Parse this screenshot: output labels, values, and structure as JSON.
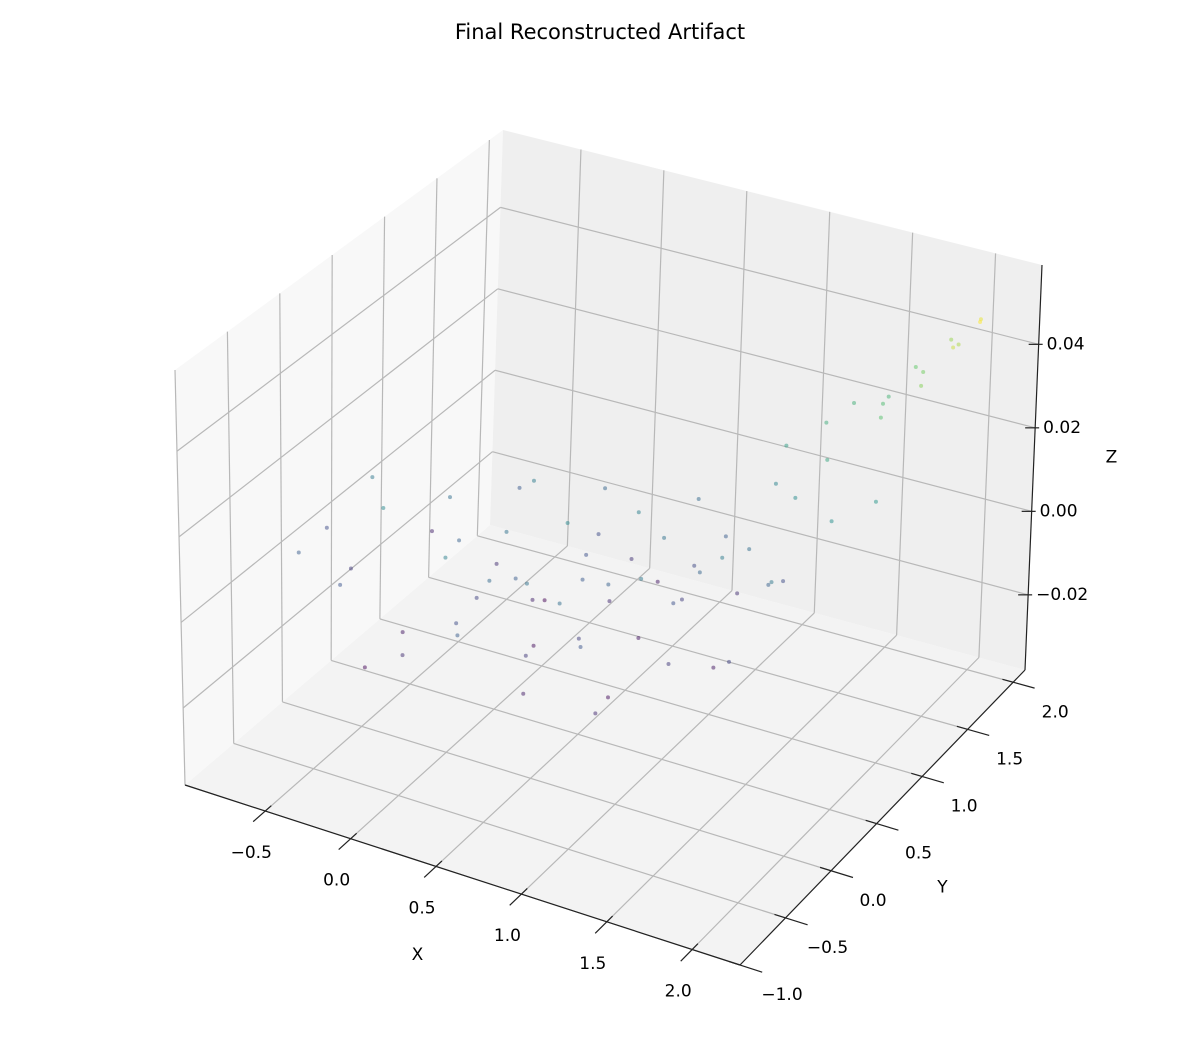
{
  "chart_data": {
    "type": "scatter3d",
    "title": "Final Reconstructed Artifact",
    "xlabel": "X",
    "ylabel": "Y",
    "zlabel": "Z",
    "colormap": "viridis",
    "xlim": [
      -0.97,
      2.28
    ],
    "ylim": [
      -1.0,
      2.13
    ],
    "zlim": [
      -0.038,
      0.059
    ],
    "xticks": [
      {
        "value": -0.5,
        "label": "−0.5"
      },
      {
        "value": 0,
        "label": "0.0"
      },
      {
        "value": 0.5,
        "label": "0.5"
      },
      {
        "value": 1,
        "label": "1.0"
      },
      {
        "value": 1.5,
        "label": "1.5"
      },
      {
        "value": 2,
        "label": "2.0"
      }
    ],
    "yticks": [
      {
        "value": -1,
        "label": "−1.0"
      },
      {
        "value": -0.5,
        "label": "−0.5"
      },
      {
        "value": 0,
        "label": "0.0"
      },
      {
        "value": 0.5,
        "label": "0.5"
      },
      {
        "value": 1,
        "label": "1.0"
      },
      {
        "value": 1.5,
        "label": "1.5"
      },
      {
        "value": 2,
        "label": "2.0"
      }
    ],
    "zticks": [
      {
        "value": -0.02,
        "label": "−0.02"
      },
      {
        "value": 0,
        "label": "0.00"
      },
      {
        "value": 0.02,
        "label": "0.02"
      },
      {
        "value": 0.04,
        "label": "0.04"
      }
    ],
    "x": [
      -0.62,
      -0.45,
      -0.3,
      -0.2,
      -0.1,
      0.0,
      0.05,
      0.12,
      0.2,
      0.25,
      0.3,
      0.35,
      0.4,
      0.45,
      0.5,
      0.55,
      0.6,
      0.65,
      0.7,
      0.75,
      0.8,
      0.85,
      0.9,
      0.95,
      1.0,
      1.05,
      1.1,
      1.15,
      1.2,
      1.25,
      1.3,
      1.35,
      1.4,
      1.5,
      1.55,
      -0.7,
      -0.55,
      -0.4,
      -0.25,
      -0.15,
      -0.05,
      0.08,
      0.18,
      0.28,
      0.38,
      0.48,
      0.58,
      0.68,
      0.78,
      0.88,
      0.98,
      1.08,
      1.18,
      1.28,
      1.45,
      0.15,
      0.62,
      0.32,
      0.72,
      1.02,
      1.2,
      1.35,
      1.5,
      1.6,
      1.7,
      1.75,
      1.85,
      1.9,
      1.95,
      2.0,
      1.65,
      1.8,
      2.05,
      1.55,
      1.4,
      -0.75,
      -0.85,
      1.6,
      1.7,
      1.85
    ],
    "y": [
      0.1,
      -0.3,
      0.55,
      -0.1,
      0.3,
      -0.45,
      0.8,
      0.1,
      -0.25,
      0.45,
      1.1,
      -0.5,
      0.2,
      0.65,
      -0.05,
      0.95,
      0.35,
      -0.35,
      0.75,
      0.05,
      1.2,
      0.5,
      -0.2,
      0.9,
      0.25,
      1.05,
      -0.4,
      0.6,
      1.3,
      0.1,
      0.85,
      0.4,
      1.15,
      0.7,
      0.2,
      0.45,
      0.8,
      0.05,
      -0.4,
      1.0,
      0.6,
      -0.15,
      0.7,
      -0.05,
      0.9,
      0.4,
      -0.2,
      1.0,
      0.3,
      0.7,
      -0.05,
      0.45,
      0.95,
      0.6,
      0.95,
      0.35,
      0.6,
      0.15,
      -0.1,
      0.65,
      1.4,
      1.55,
      1.3,
      1.7,
      1.5,
      1.85,
      1.65,
      1.95,
      1.8,
      2.0,
      1.95,
      2.05,
      1.9,
      1.85,
      1.75,
      -0.2,
      0.25,
      0.55,
      1.0,
      1.2
    ],
    "z": [
      -0.004,
      0.002,
      0.008,
      -0.01,
      0.005,
      -0.006,
      0.011,
      -0.002,
      0.0,
      -0.008,
      0.006,
      0.004,
      -0.012,
      0.001,
      0.009,
      -0.005,
      0.003,
      -0.009,
      0.012,
      -0.003,
      0.007,
      -0.011,
      0.002,
      -0.001,
      0.01,
      0.004,
      -0.007,
      0.006,
      0.013,
      -0.004,
      0.008,
      -0.01,
      0.015,
      0.005,
      -0.002,
      0.01,
      -0.008,
      0.014,
      -0.013,
      0.003,
      -0.006,
      0.012,
      -0.014,
      0.007,
      0.0,
      0.014,
      -0.004,
      -0.01,
      0.005,
      0.009,
      -0.012,
      0.001,
      -0.006,
      0.011,
      0.0,
      0.009,
      -0.007,
      0.004,
      0.008,
      -0.003,
      0.02,
      0.024,
      0.022,
      0.028,
      0.03,
      0.034,
      0.036,
      0.04,
      0.043,
      0.046,
      0.032,
      0.038,
      0.048,
      0.026,
      0.025,
      0.004,
      0.0,
      0.01,
      0.016,
      0.018
    ]
  }
}
